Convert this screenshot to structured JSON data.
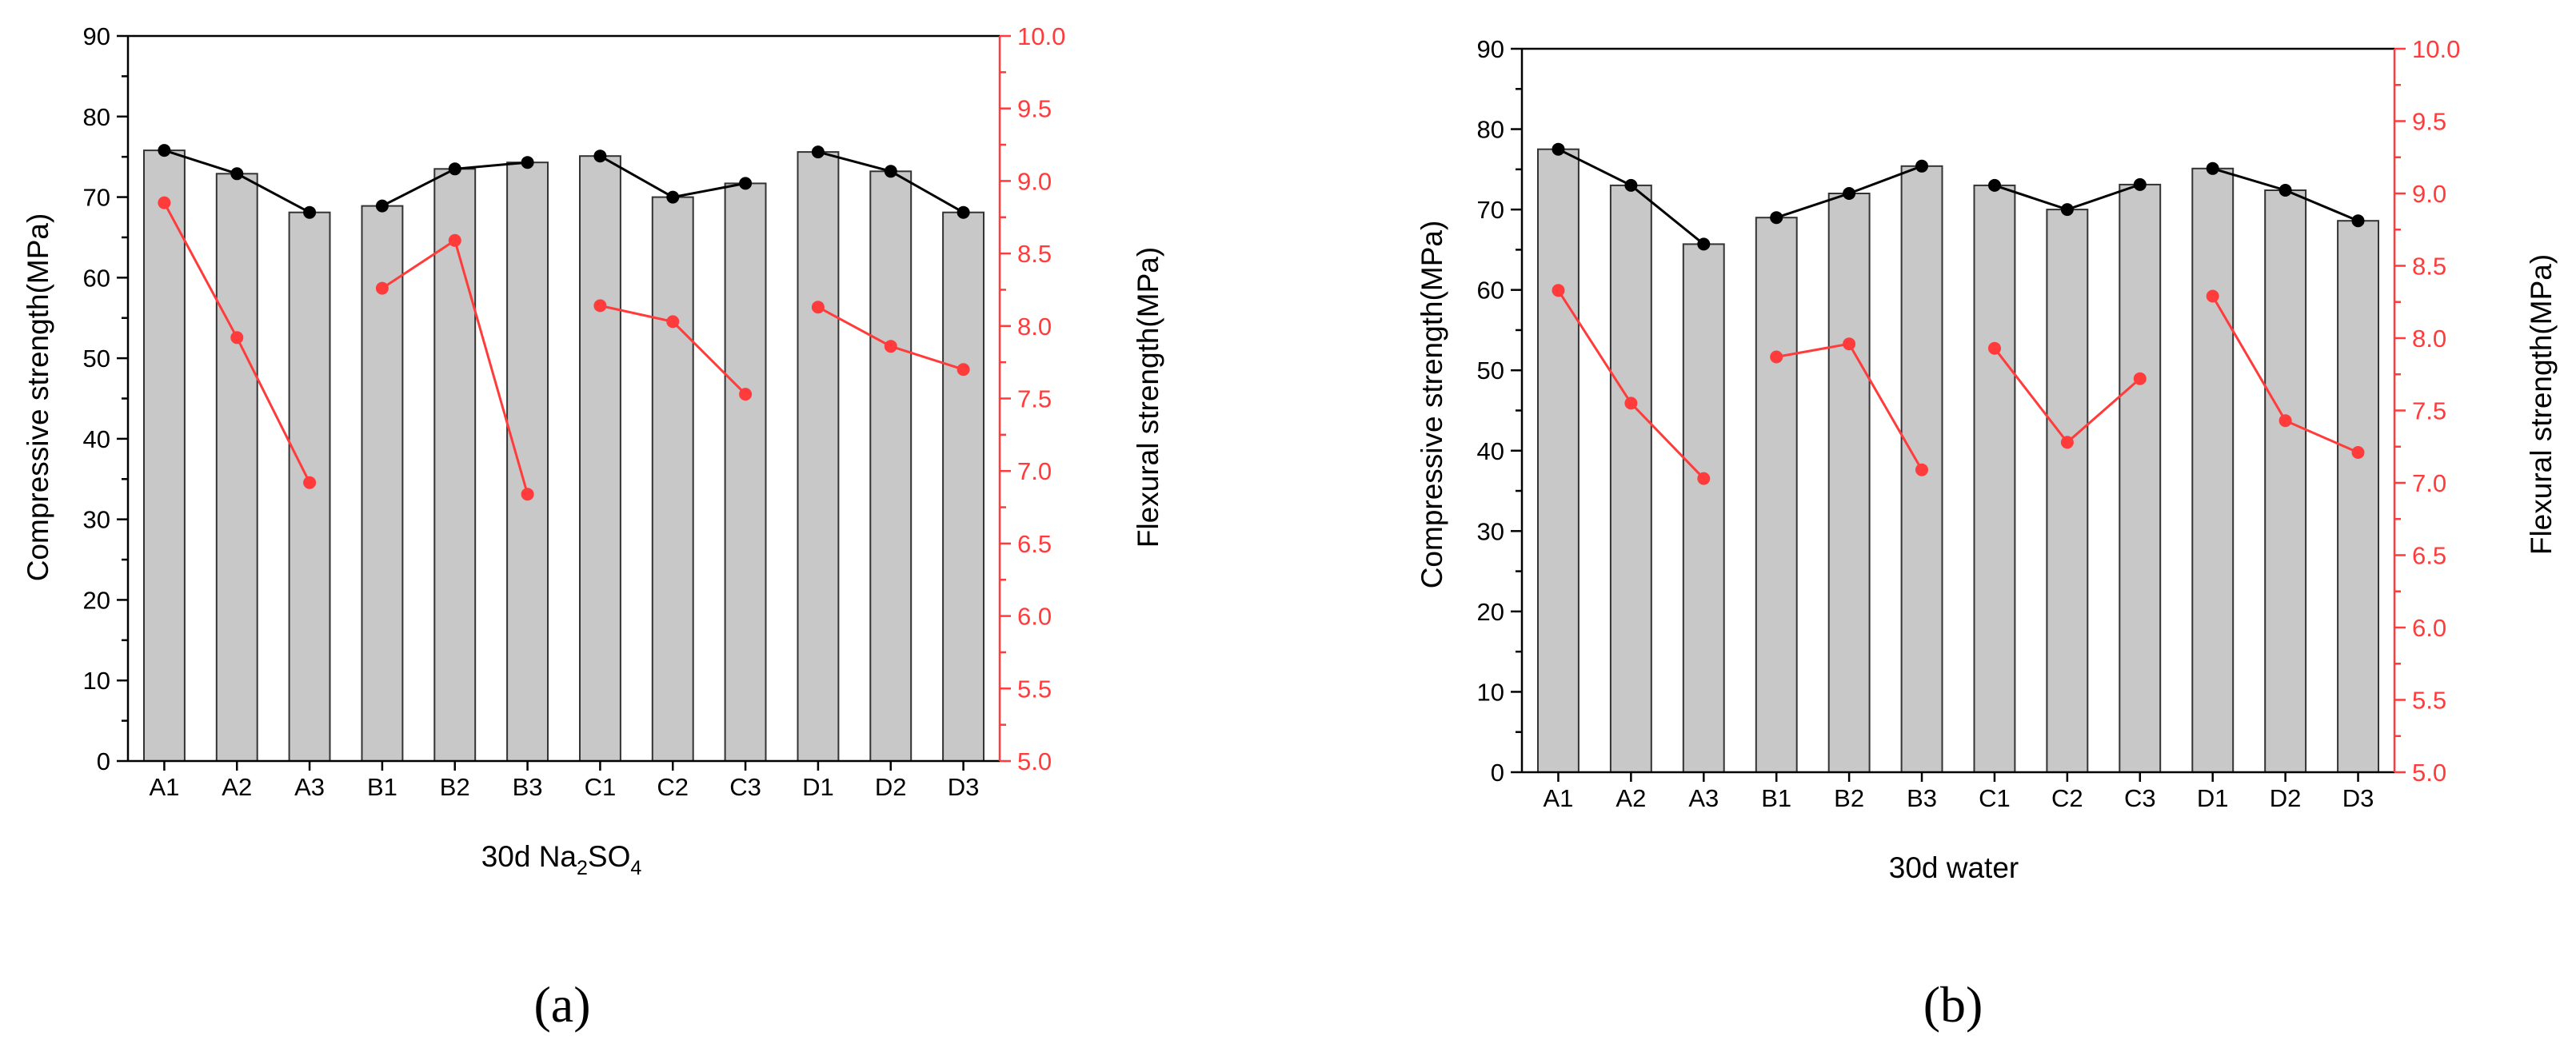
{
  "colors": {
    "bar_fill": "#c8c8c8",
    "compressive": "#000000",
    "flexural": "#ff3b3b"
  },
  "chart_data": [
    {
      "type": "bar",
      "panel_label": "(a)",
      "title": "",
      "xlabel": "30d Na2SO4",
      "xlabel_parts": {
        "pre": "30d Na",
        "sub1": "2",
        "mid": "SO",
        "sub2": "4"
      },
      "ylabel": "Compressive strength(MPa)",
      "y2label": "Flexural strength(MPa)",
      "ylim": [
        0,
        90
      ],
      "y2lim": [
        5.0,
        10.0
      ],
      "yticks": [
        "0",
        "10",
        "20",
        "30",
        "40",
        "50",
        "60",
        "70",
        "80",
        "90"
      ],
      "y2ticks": [
        "5.0",
        "5.5",
        "6.0",
        "6.5",
        "7.0",
        "7.5",
        "8.0",
        "8.5",
        "9.0",
        "9.5",
        "10.0"
      ],
      "categories": [
        "A1",
        "A2",
        "A3",
        "B1",
        "B2",
        "B3",
        "C1",
        "C2",
        "C3",
        "D1",
        "D2",
        "D3"
      ],
      "groups": [
        [
          0,
          1,
          2
        ],
        [
          3,
          4,
          5
        ],
        [
          6,
          7,
          8
        ],
        [
          9,
          10,
          11
        ]
      ],
      "series": [
        {
          "name": "Compressive strength",
          "axis": "left",
          "style": "bar+line",
          "values": [
            75.8,
            72.9,
            68.1,
            68.9,
            73.5,
            74.3,
            75.1,
            70.0,
            71.7,
            75.6,
            73.2,
            68.1
          ]
        },
        {
          "name": "Flexural strength",
          "axis": "right",
          "style": "line",
          "values": [
            8.85,
            7.92,
            6.92,
            8.26,
            8.59,
            6.84,
            8.14,
            8.03,
            7.53,
            8.13,
            7.86,
            7.7
          ]
        }
      ]
    },
    {
      "type": "bar",
      "panel_label": "(b)",
      "title": "",
      "xlabel": "30d water",
      "ylabel": "Compressive strength(MPa)",
      "y2label": "Flexural strength(MPa)",
      "ylim": [
        0,
        90
      ],
      "y2lim": [
        5.0,
        10.0
      ],
      "yticks": [
        "0",
        "10",
        "20",
        "30",
        "40",
        "50",
        "60",
        "70",
        "80",
        "90"
      ],
      "y2ticks": [
        "5.0",
        "5.5",
        "6.0",
        "6.5",
        "7.0",
        "7.5",
        "8.0",
        "8.5",
        "9.0",
        "9.5",
        "10.0"
      ],
      "categories": [
        "A1",
        "A2",
        "A3",
        "B1",
        "B2",
        "B3",
        "C1",
        "C2",
        "C3",
        "D1",
        "D2",
        "D3"
      ],
      "groups": [
        [
          0,
          1,
          2
        ],
        [
          3,
          4,
          5
        ],
        [
          6,
          7,
          8
        ],
        [
          9,
          10,
          11
        ]
      ],
      "series": [
        {
          "name": "Compressive strength",
          "axis": "left",
          "style": "bar+line",
          "values": [
            77.5,
            73.0,
            65.7,
            69.0,
            72.0,
            75.4,
            73.0,
            70.0,
            73.1,
            75.1,
            72.4,
            68.6
          ]
        },
        {
          "name": "Flexural strength",
          "axis": "right",
          "style": "line",
          "values": [
            8.33,
            7.55,
            7.03,
            7.87,
            7.96,
            7.09,
            7.93,
            7.28,
            7.72,
            8.29,
            7.43,
            7.21
          ]
        }
      ]
    }
  ]
}
